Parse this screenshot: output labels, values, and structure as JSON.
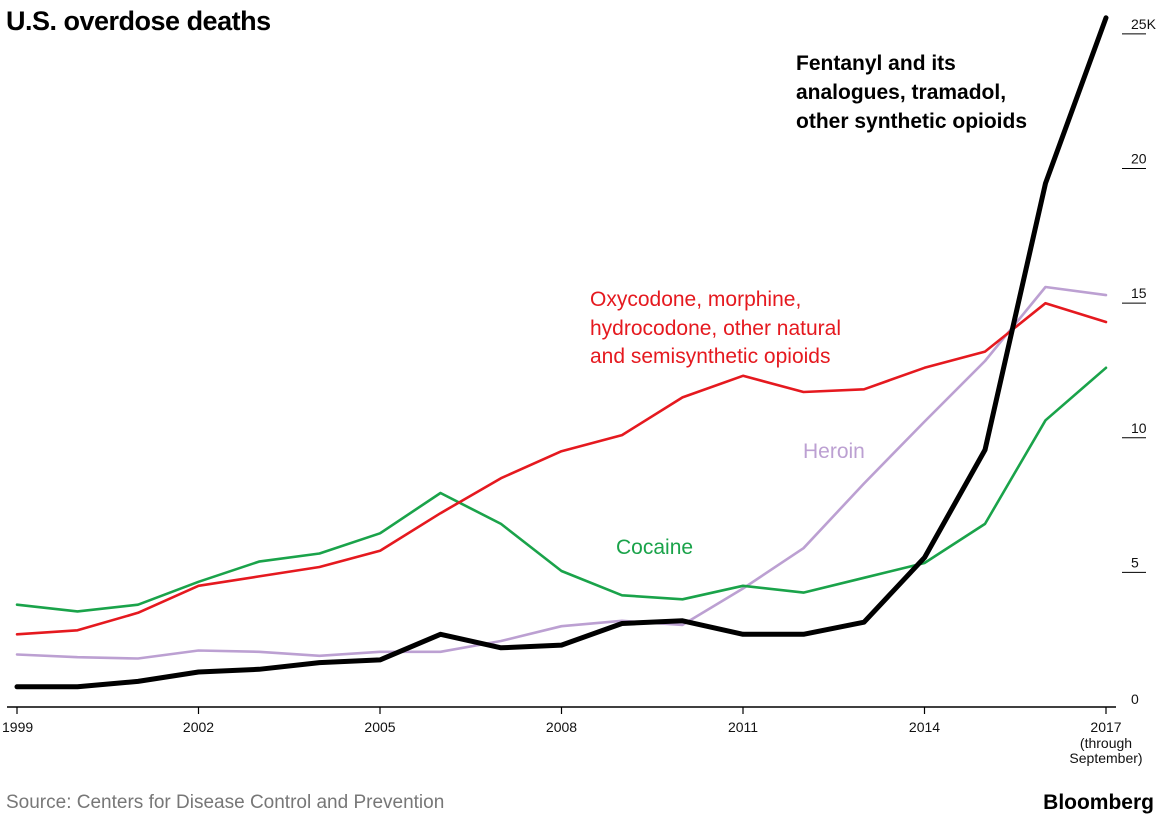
{
  "title": "U.S. overdose deaths",
  "source": "Source: Centers for Disease Control and Prevention",
  "brand": "Bloomberg",
  "chart_data": {
    "type": "line",
    "title": "U.S. overdose deaths",
    "x": [
      1999,
      2000,
      2001,
      2002,
      2003,
      2004,
      2005,
      2006,
      2007,
      2008,
      2009,
      2010,
      2011,
      2012,
      2013,
      2014,
      2015,
      2016,
      2017
    ],
    "x_ticks": [
      "1999",
      "2002",
      "2005",
      "2008",
      "2011",
      "2014",
      "2017"
    ],
    "x_tick_note": [
      "(through",
      "September)"
    ],
    "y_ticks": [
      "0",
      "5",
      "10",
      "15",
      "20",
      "25K"
    ],
    "ylim": [
      0,
      26
    ],
    "y_axis_side": "right",
    "grid": false,
    "legend": "direct labels",
    "series": [
      {
        "name": "Oxycodone, morphine, hydrocodone, other natural and semisynthetic opioids",
        "label_lines": [
          "Oxycodone, morphine,",
          "hydrocodone, other natural",
          "and semisynthetic opioids"
        ],
        "color": "#e5191f",
        "values": [
          2.7,
          2.85,
          3.5,
          4.5,
          4.85,
          5.2,
          5.8,
          7.2,
          8.5,
          9.5,
          10.1,
          11.5,
          12.3,
          11.7,
          11.8,
          12.6,
          13.2,
          15.0,
          14.3
        ]
      },
      {
        "name": "Cocaine",
        "label_lines": [
          "Cocaine"
        ],
        "color": "#1aa34a",
        "values": [
          3.8,
          3.55,
          3.8,
          4.65,
          5.4,
          5.7,
          6.45,
          7.95,
          6.8,
          5.05,
          4.15,
          4.0,
          4.5,
          4.25,
          4.8,
          5.35,
          6.8,
          10.65,
          12.6
        ]
      },
      {
        "name": "Heroin",
        "label_lines": [
          "Heroin"
        ],
        "color": "#bca0d2",
        "values": [
          1.95,
          1.85,
          1.8,
          2.1,
          2.05,
          1.9,
          2.05,
          2.05,
          2.45,
          3.0,
          3.2,
          3.05,
          4.4,
          5.9,
          8.3,
          10.6,
          12.85,
          15.6,
          15.3
        ]
      },
      {
        "name": "Fentanyl and its analogues, tramadol, other synthetic opioids",
        "label_lines": [
          "Fentanyl and its",
          "analogues, tramadol,",
          "other synthetic opioids"
        ],
        "color": "#000000",
        "values": [
          0.75,
          0.75,
          0.95,
          1.3,
          1.4,
          1.65,
          1.75,
          2.7,
          2.2,
          2.3,
          3.1,
          3.2,
          2.7,
          2.7,
          3.15,
          5.55,
          9.55,
          19.45,
          25.6
        ]
      }
    ]
  }
}
